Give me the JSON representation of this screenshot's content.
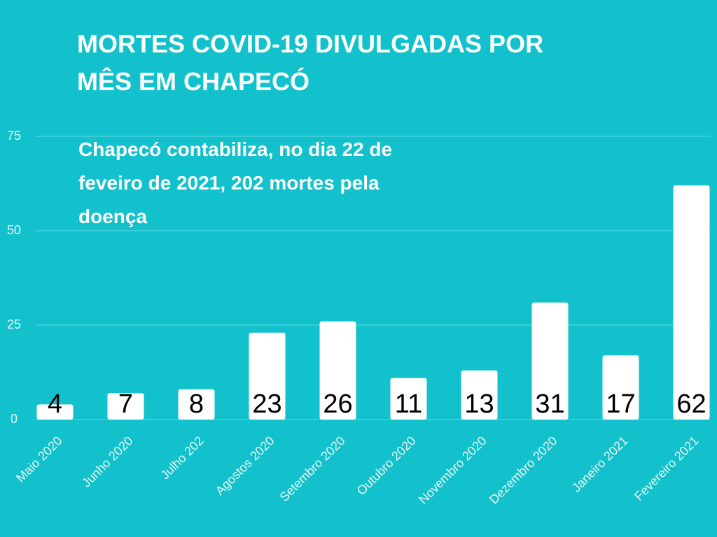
{
  "chart_data": {
    "type": "bar",
    "title": "MORTES COVID-19 DIVULGADAS POR\nMÊS EM CHAPECÓ",
    "annotation": "Chapecó contabiliza, no dia 22 de\nfeveiro de 2021, 202 mortes pela\ndoença",
    "categories": [
      "Maio 2020",
      "Junho 2020",
      "Julho 202",
      "Agostos 2020",
      "Setembro 2020",
      "Outubro 2020",
      "Novembro 2020",
      "Dezembro 2020",
      "Janeiro 2021",
      "Fevereiro 2021"
    ],
    "values": [
      4,
      7,
      8,
      23,
      26,
      11,
      13,
      31,
      17,
      62
    ],
    "color": "#ffffff",
    "ylim": [
      0,
      75
    ],
    "yticks": [
      0,
      25,
      50,
      75
    ],
    "grid": true
  }
}
